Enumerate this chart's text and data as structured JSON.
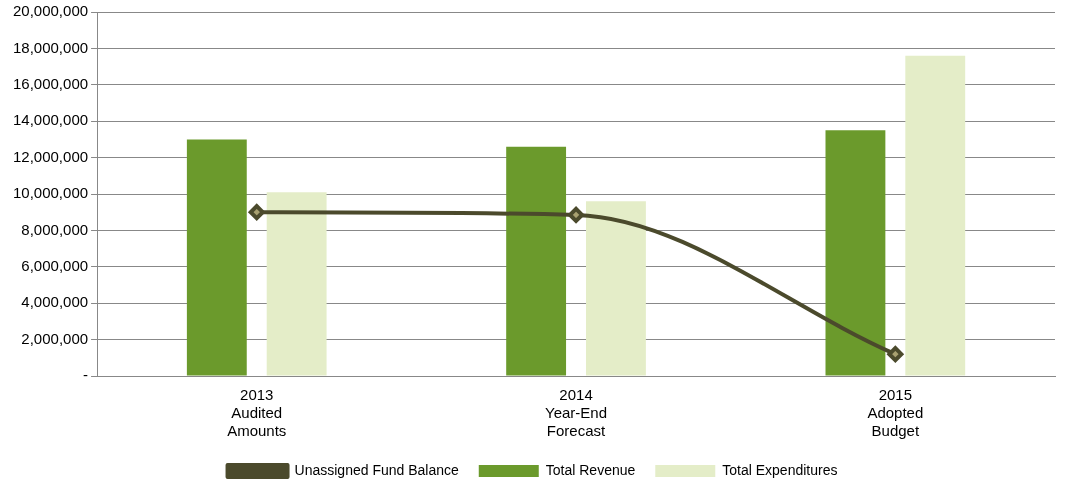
{
  "chart_data": {
    "type": "bar",
    "categories": [
      "2013\nAudited\nAmounts",
      "2014\nYear-End\nForecast",
      "2015\nAdopted\nBudget"
    ],
    "series": [
      {
        "name": "Total Revenue",
        "color": "#6b9a2c",
        "values": [
          13000000,
          12600000,
          13500000
        ]
      },
      {
        "name": "Total Expenditures",
        "color": "#e4edc8",
        "values": [
          10100000,
          9600000,
          17600000
        ]
      },
      {
        "name": "Unassigned Fund Balance",
        "type": "line",
        "color": "#4b4a2c",
        "marker": "diamond",
        "values": [
          9000000,
          8850000,
          1200000
        ]
      }
    ],
    "ylim": [
      0,
      20000000
    ],
    "yticks": [
      {
        "value": 0,
        "label": "-"
      },
      {
        "value": 2000000,
        "label": "2,000,000"
      },
      {
        "value": 4000000,
        "label": "4,000,000"
      },
      {
        "value": 6000000,
        "label": "6,000,000"
      },
      {
        "value": 8000000,
        "label": "8,000,000"
      },
      {
        "value": 10000000,
        "label": "10,000,000"
      },
      {
        "value": 12000000,
        "label": "12,000,000"
      },
      {
        "value": 14000000,
        "label": "14,000,000"
      },
      {
        "value": 16000000,
        "label": "16,000,000"
      },
      {
        "value": 18000000,
        "label": "18,000,000"
      },
      {
        "value": 20000000,
        "label": "20,000,000"
      }
    ],
    "grid": "y",
    "legend": "bottom"
  }
}
